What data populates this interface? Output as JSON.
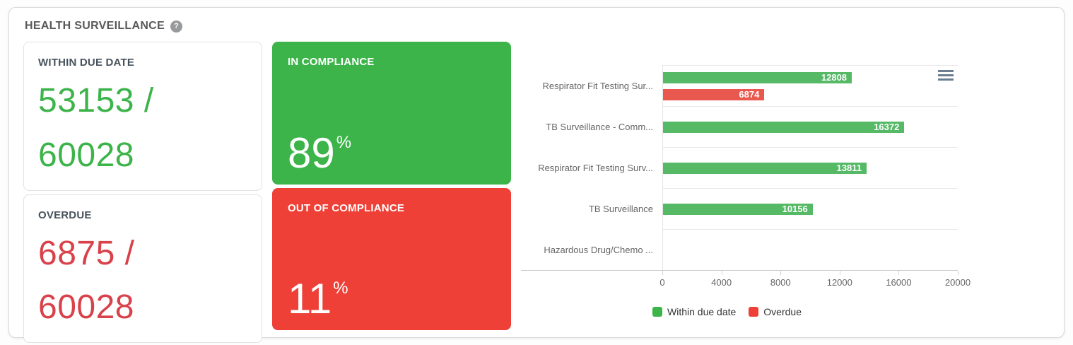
{
  "panel": {
    "title": "HEALTH SURVEILLANCE",
    "help_icon_glyph": "?"
  },
  "icons": {
    "help": "question-mark-circle",
    "menu": "hamburger-menu"
  },
  "stats": {
    "within_due_date": {
      "label": "WITHIN DUE DATE",
      "value": "53153 / 60028"
    },
    "overdue": {
      "label": "OVERDUE",
      "value": "6875 / 60028"
    },
    "in_compliance": {
      "label": "IN COMPLIANCE",
      "percent": "89",
      "percent_sign": "%"
    },
    "out_of_compliance": {
      "label": "OUT OF COMPLIANCE",
      "percent": "11",
      "percent_sign": "%"
    }
  },
  "colors": {
    "stat_green": "#3cb44a",
    "stat_red": "#d9414b",
    "card_green": "#3cb44a",
    "card_red": "#ee4037",
    "bar_green": "#55b966",
    "bar_red": "#e8584f"
  },
  "chart_data": {
    "type": "bar",
    "orientation": "horizontal",
    "categories": [
      "Respirator Fit Testing Sur...",
      "TB Surveillance - Comm...",
      "Respirator Fit Testing Surv...",
      "TB Surveillance",
      "Hazardous Drug/Chemo ..."
    ],
    "series": [
      {
        "name": "Within due date",
        "color": "#55b966",
        "values": [
          12808,
          16372,
          13811,
          10156,
          null
        ]
      },
      {
        "name": "Overdue",
        "color": "#e8584f",
        "values": [
          6874,
          null,
          null,
          null,
          null
        ]
      }
    ],
    "xlim": [
      0,
      20000
    ],
    "x_ticks": [
      0,
      4000,
      8000,
      12000,
      16000,
      20000
    ],
    "grid": "category-boundaries",
    "legend_position": "bottom-left",
    "legend": [
      {
        "label": "Within due date",
        "color": "#3cb44a"
      },
      {
        "label": "Overdue",
        "color": "#ee4037"
      }
    ]
  }
}
